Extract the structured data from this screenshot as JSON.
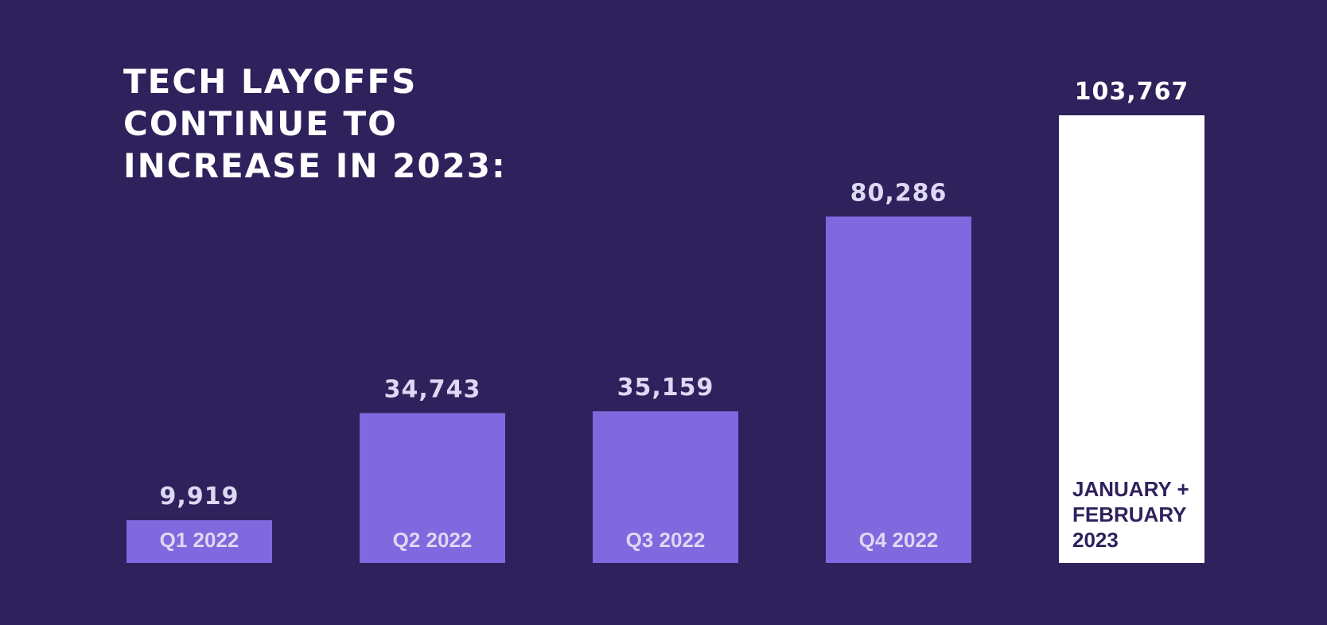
{
  "chart_data": {
    "type": "bar",
    "title": "TECH LAYOFFS\nCONTINUE TO\nINCREASE IN 2023:",
    "categories": [
      "Q1 2022",
      "Q2 2022",
      "Q3 2022",
      "Q4 2022",
      "JANUARY + FEBRUARY 2023"
    ],
    "category_lines": [
      [
        "Q1 2022"
      ],
      [
        "Q2 2022"
      ],
      [
        "Q3 2022"
      ],
      [
        "Q4 2022"
      ],
      [
        "JANUARY +",
        "FEBRUARY",
        "2023"
      ]
    ],
    "values": [
      9919,
      34743,
      35159,
      80286,
      103767
    ],
    "value_labels": [
      "9,919",
      "34,743",
      "35,159",
      "80,286",
      "103,767"
    ],
    "xlabel": "",
    "ylabel": "",
    "grid": false,
    "legend": "none",
    "colors": {
      "background": "#2f215c",
      "bar": "#8068df",
      "highlight_bar": "#ffffff",
      "value_label": "#ddd8f3",
      "highlight_value_label": "#ffffff",
      "category_label": "#ddd8f3",
      "highlight_category_label": "#2f215c",
      "title": "#ffffff"
    }
  }
}
